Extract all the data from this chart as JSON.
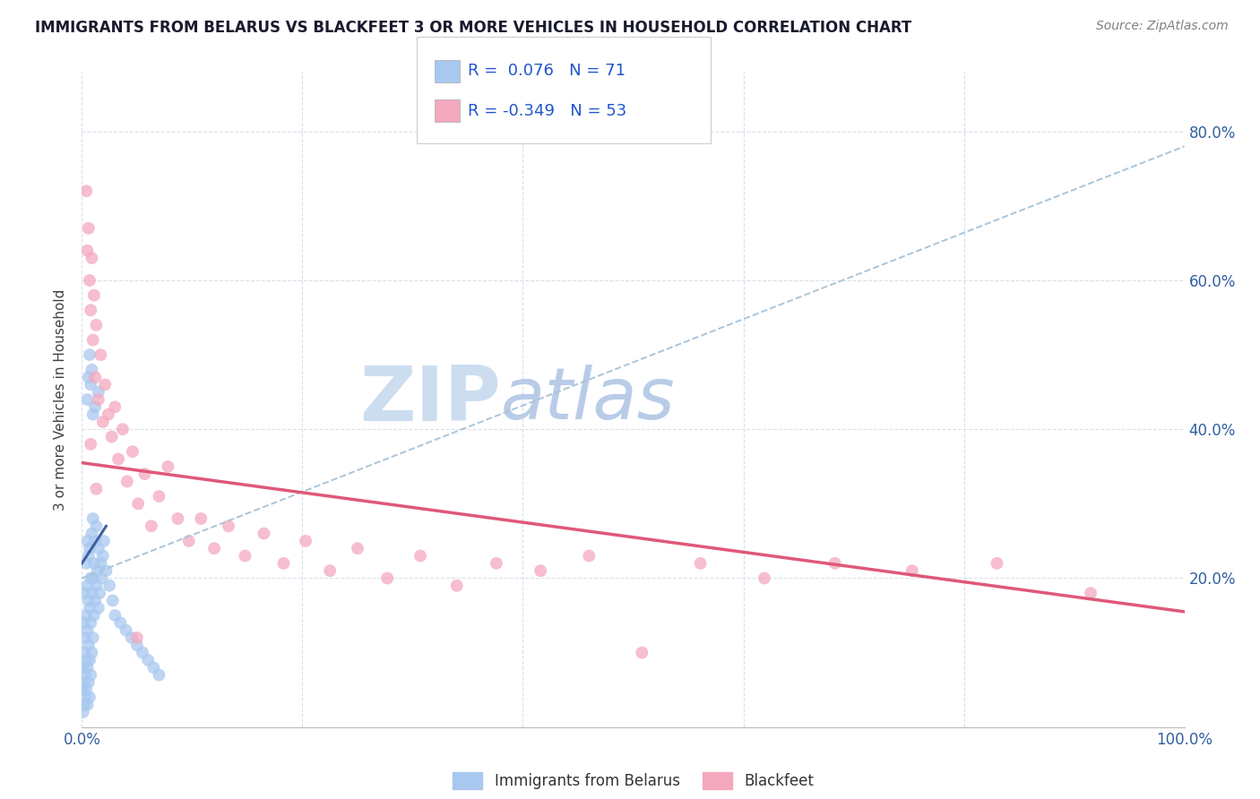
{
  "title": "IMMIGRANTS FROM BELARUS VS BLACKFEET 3 OR MORE VEHICLES IN HOUSEHOLD CORRELATION CHART",
  "source_text": "Source: ZipAtlas.com",
  "ylabel": "3 or more Vehicles in Household",
  "xlim": [
    0.0,
    1.0
  ],
  "ylim": [
    0.0,
    0.88
  ],
  "r_belarus": 0.076,
  "n_belarus": 71,
  "r_blackfeet": -0.349,
  "n_blackfeet": 53,
  "legend_label_belarus": "Immigrants from Belarus",
  "legend_label_blackfeet": "Blackfeet",
  "color_belarus": "#a8c8f0",
  "color_blackfeet": "#f4a8be",
  "color_trend_gray_dashed": "#aac4d8",
  "color_trend_blue_solid": "#4060a0",
  "color_trend_pink_solid": "#e05878",
  "watermark_zip_color": "#ccddf0",
  "watermark_atlas_color": "#b8cce8",
  "belarus_x": [
    0.001,
    0.001,
    0.001,
    0.002,
    0.002,
    0.002,
    0.002,
    0.003,
    0.003,
    0.003,
    0.003,
    0.004,
    0.004,
    0.004,
    0.004,
    0.005,
    0.005,
    0.005,
    0.005,
    0.005,
    0.006,
    0.006,
    0.006,
    0.006,
    0.007,
    0.007,
    0.007,
    0.007,
    0.008,
    0.008,
    0.008,
    0.009,
    0.009,
    0.009,
    0.01,
    0.01,
    0.01,
    0.011,
    0.011,
    0.012,
    0.012,
    0.013,
    0.013,
    0.014,
    0.015,
    0.015,
    0.016,
    0.017,
    0.018,
    0.019,
    0.02,
    0.022,
    0.025,
    0.028,
    0.03,
    0.035,
    0.04,
    0.045,
    0.05,
    0.055,
    0.06,
    0.065,
    0.07,
    0.005,
    0.006,
    0.007,
    0.008,
    0.009,
    0.01,
    0.012,
    0.015
  ],
  "belarus_y": [
    0.02,
    0.05,
    0.08,
    0.03,
    0.06,
    0.1,
    0.14,
    0.04,
    0.07,
    0.12,
    0.18,
    0.05,
    0.09,
    0.15,
    0.22,
    0.03,
    0.08,
    0.13,
    0.19,
    0.25,
    0.06,
    0.11,
    0.17,
    0.23,
    0.04,
    0.09,
    0.16,
    0.24,
    0.07,
    0.14,
    0.2,
    0.1,
    0.18,
    0.26,
    0.12,
    0.2,
    0.28,
    0.15,
    0.22,
    0.17,
    0.25,
    0.19,
    0.27,
    0.21,
    0.16,
    0.24,
    0.18,
    0.22,
    0.2,
    0.23,
    0.25,
    0.21,
    0.19,
    0.17,
    0.15,
    0.14,
    0.13,
    0.12,
    0.11,
    0.1,
    0.09,
    0.08,
    0.07,
    0.44,
    0.47,
    0.5,
    0.46,
    0.48,
    0.42,
    0.43,
    0.45
  ],
  "blackfeet_x": [
    0.004,
    0.005,
    0.006,
    0.007,
    0.008,
    0.009,
    0.01,
    0.011,
    0.012,
    0.013,
    0.015,
    0.017,
    0.019,
    0.021,
    0.024,
    0.027,
    0.03,
    0.033,
    0.037,
    0.041,
    0.046,
    0.051,
    0.057,
    0.063,
    0.07,
    0.078,
    0.087,
    0.097,
    0.108,
    0.12,
    0.133,
    0.148,
    0.165,
    0.183,
    0.203,
    0.225,
    0.25,
    0.277,
    0.307,
    0.34,
    0.376,
    0.416,
    0.46,
    0.508,
    0.561,
    0.619,
    0.683,
    0.753,
    0.83,
    0.915,
    0.008,
    0.013,
    0.05
  ],
  "blackfeet_y": [
    0.72,
    0.64,
    0.67,
    0.6,
    0.56,
    0.63,
    0.52,
    0.58,
    0.47,
    0.54,
    0.44,
    0.5,
    0.41,
    0.46,
    0.42,
    0.39,
    0.43,
    0.36,
    0.4,
    0.33,
    0.37,
    0.3,
    0.34,
    0.27,
    0.31,
    0.35,
    0.28,
    0.25,
    0.28,
    0.24,
    0.27,
    0.23,
    0.26,
    0.22,
    0.25,
    0.21,
    0.24,
    0.2,
    0.23,
    0.19,
    0.22,
    0.21,
    0.23,
    0.1,
    0.22,
    0.2,
    0.22,
    0.21,
    0.22,
    0.18,
    0.38,
    0.32,
    0.12
  ],
  "trend_belarus_x0": 0.0,
  "trend_belarus_x1": 1.0,
  "trend_belarus_y0": 0.2,
  "trend_belarus_y1": 0.78,
  "trend_blue_short_x0": 0.0,
  "trend_blue_short_x1": 0.022,
  "trend_blue_short_y0": 0.22,
  "trend_blue_short_y1": 0.27,
  "trend_blackfeet_x0": 0.0,
  "trend_blackfeet_x1": 1.0,
  "trend_blackfeet_y0": 0.355,
  "trend_blackfeet_y1": 0.155
}
